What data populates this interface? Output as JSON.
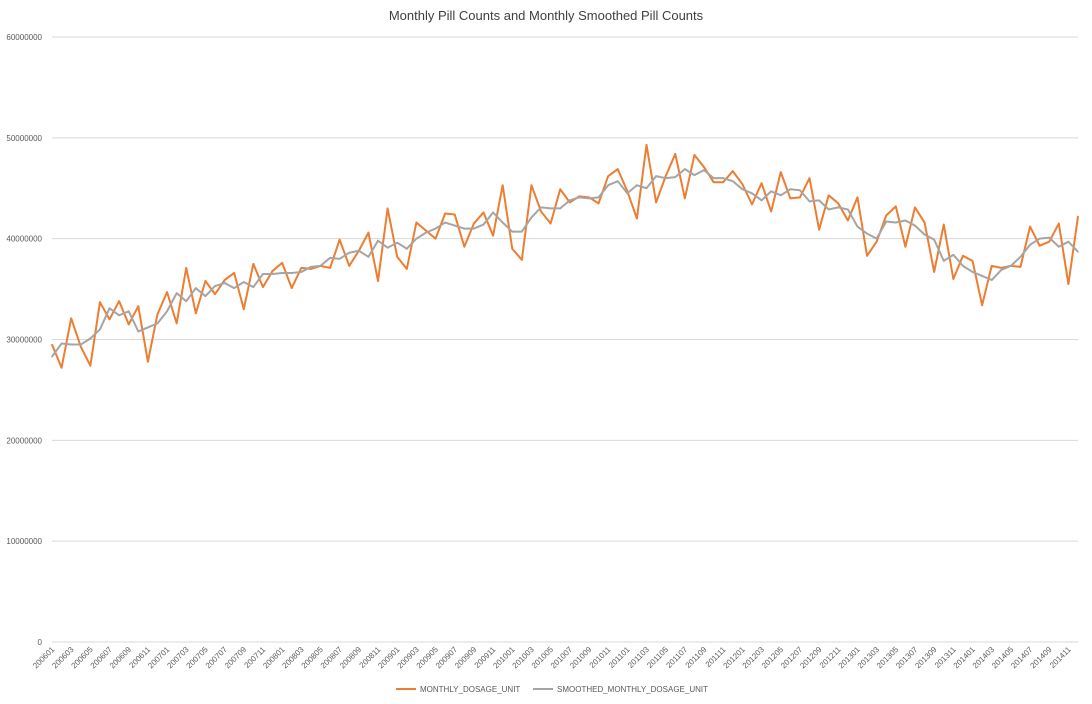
{
  "chart_data": {
    "type": "line",
    "title": "Monthly Pill Counts and Monthly Smoothed Pill Counts",
    "xlabel": "",
    "ylabel": "",
    "ylim": [
      0,
      60000000
    ],
    "y_ticks": [
      "0",
      "10000000",
      "20000000",
      "30000000",
      "40000000",
      "50000000",
      "60000000"
    ],
    "grid": true,
    "legend_position": "bottom",
    "x_tick_labels": [
      "200601",
      "200603",
      "200605",
      "200607",
      "200609",
      "200611",
      "200701",
      "200703",
      "200705",
      "200707",
      "200709",
      "200711",
      "200801",
      "200803",
      "200805",
      "200807",
      "200809",
      "200811",
      "200901",
      "200903",
      "200905",
      "200907",
      "200909",
      "200911",
      "201001",
      "201003",
      "201005",
      "201007",
      "201009",
      "201011",
      "201101",
      "201103",
      "201105",
      "201107",
      "201109",
      "201111",
      "201201",
      "201203",
      "201205",
      "201207",
      "201209",
      "201211",
      "201301",
      "201303",
      "201305",
      "201307",
      "201309",
      "201311",
      "201401",
      "201403",
      "201405",
      "201407",
      "201409",
      "201411"
    ],
    "x": [
      "200601",
      "200602",
      "200603",
      "200604",
      "200605",
      "200606",
      "200607",
      "200608",
      "200609",
      "200610",
      "200611",
      "200612",
      "200701",
      "200702",
      "200703",
      "200704",
      "200705",
      "200706",
      "200707",
      "200708",
      "200709",
      "200710",
      "200711",
      "200712",
      "200801",
      "200802",
      "200803",
      "200804",
      "200805",
      "200806",
      "200807",
      "200808",
      "200809",
      "200810",
      "200811",
      "200812",
      "200901",
      "200902",
      "200903",
      "200904",
      "200905",
      "200906",
      "200907",
      "200908",
      "200909",
      "200910",
      "200911",
      "200912",
      "201001",
      "201002",
      "201003",
      "201004",
      "201005",
      "201006",
      "201007",
      "201008",
      "201009",
      "201010",
      "201011",
      "201012",
      "201101",
      "201102",
      "201103",
      "201104",
      "201105",
      "201106",
      "201107",
      "201108",
      "201109",
      "201110",
      "201111",
      "201112",
      "201201",
      "201202",
      "201203",
      "201204",
      "201205",
      "201206",
      "201207",
      "201208",
      "201209",
      "201210",
      "201211",
      "201212",
      "201301",
      "201302",
      "201303",
      "201304",
      "201305",
      "201306",
      "201307",
      "201308",
      "201309",
      "201310",
      "201311",
      "201312",
      "201401",
      "201402",
      "201403",
      "201404",
      "201405",
      "201406",
      "201407",
      "201408",
      "201409",
      "201410",
      "201411",
      "201412"
    ],
    "series": [
      {
        "name": "MONTHLY_DOSAGE_UNIT",
        "color": "#ED7D31",
        "values": [
          29500000,
          27200000,
          32100000,
          29300000,
          27400000,
          33700000,
          32000000,
          33800000,
          31500000,
          33300000,
          27800000,
          32500000,
          34700000,
          31600000,
          37100000,
          32600000,
          35800000,
          34500000,
          35900000,
          36600000,
          33000000,
          37500000,
          35200000,
          36800000,
          37600000,
          35100000,
          37100000,
          37000000,
          37300000,
          37100000,
          39900000,
          37300000,
          38800000,
          40600000,
          35800000,
          43000000,
          38200000,
          37000000,
          41600000,
          40800000,
          40000000,
          42500000,
          42400000,
          39200000,
          41500000,
          42600000,
          40300000,
          45300000,
          39000000,
          37900000,
          45300000,
          42700000,
          41500000,
          44900000,
          43600000,
          44200000,
          44100000,
          43500000,
          46200000,
          46900000,
          44700000,
          42000000,
          49300000,
          43600000,
          46200000,
          48400000,
          44000000,
          48300000,
          47100000,
          45600000,
          45600000,
          46700000,
          45400000,
          43400000,
          45500000,
          42700000,
          46600000,
          44000000,
          44100000,
          46000000,
          40900000,
          44300000,
          43500000,
          41800000,
          44100000,
          38300000,
          39700000,
          42300000,
          43200000,
          39200000,
          43100000,
          41600000,
          36700000,
          41400000,
          36000000,
          38300000,
          37800000,
          33400000,
          37300000,
          37100000,
          37300000,
          37200000,
          41200000,
          39300000,
          39700000,
          41500000,
          35500000,
          42200000
        ]
      },
      {
        "name": "SMOOTHED_MONTHLY_DOSAGE_UNIT",
        "color": "#A5A5A5",
        "values": [
          28300000,
          29600000,
          29500000,
          29500000,
          30100000,
          31000000,
          33100000,
          32400000,
          32800000,
          30800000,
          31200000,
          31600000,
          32800000,
          34600000,
          33800000,
          35100000,
          34300000,
          35300000,
          35600000,
          35100000,
          35700000,
          35200000,
          36500000,
          36500000,
          36600000,
          36600000,
          36700000,
          37200000,
          37300000,
          38100000,
          38000000,
          38600000,
          38800000,
          38200000,
          39800000,
          39100000,
          39600000,
          39000000,
          40000000,
          40600000,
          41000000,
          41600000,
          41300000,
          41000000,
          41000000,
          41400000,
          42600000,
          41600000,
          40700000,
          40700000,
          42100000,
          43100000,
          43000000,
          43000000,
          43800000,
          44100000,
          44000000,
          44100000,
          45300000,
          45700000,
          44500000,
          45300000,
          45000000,
          46200000,
          46000000,
          46100000,
          46900000,
          46300000,
          46800000,
          46000000,
          46000000,
          45700000,
          44900000,
          44500000,
          43800000,
          44700000,
          44300000,
          44900000,
          44800000,
          43700000,
          43800000,
          42900000,
          43100000,
          42900000,
          41200000,
          40500000,
          40000000,
          41700000,
          41600000,
          41800000,
          41300000,
          40400000,
          39900000,
          37800000,
          38400000,
          37300000,
          36700000,
          36300000,
          35900000,
          36900000,
          37300000,
          38200000,
          39400000,
          40000000,
          40100000,
          39200000,
          39700000,
          38700000
        ]
      }
    ]
  }
}
